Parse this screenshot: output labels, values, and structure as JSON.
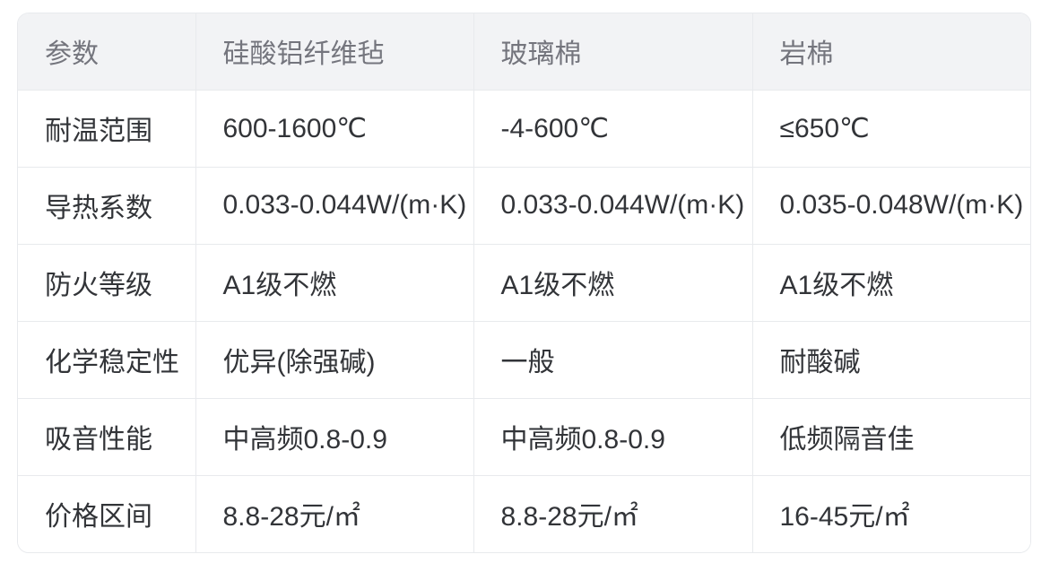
{
  "table": {
    "headers": [
      "参数",
      "硅酸铝纤维毡",
      "玻璃棉",
      "岩棉"
    ],
    "rows": [
      {
        "label": "耐温范围",
        "values": [
          "600-1600℃",
          "-4-600℃",
          "≤650℃"
        ]
      },
      {
        "label": "导热系数",
        "values": [
          "0.033-0.044W/(m·K)",
          "0.033-0.044W/(m·K)",
          "0.035-0.048W/(m·K)"
        ]
      },
      {
        "label": "防火等级",
        "values": [
          "A1级不燃",
          "A1级不燃",
          "A1级不燃"
        ]
      },
      {
        "label": "化学稳定性",
        "values": [
          "优异(除强碱)",
          "一般",
          "耐酸碱"
        ]
      },
      {
        "label": "吸音性能",
        "values": [
          "中高频0.8-0.9",
          "中高频0.8-0.9",
          "低频隔音佳"
        ]
      },
      {
        "label": "价格区间",
        "values": [
          "8.8-28元/㎡",
          "8.8-28元/㎡",
          "16-45元/㎡"
        ]
      }
    ]
  },
  "colors": {
    "page_background": "#ffffff",
    "header_background": "#f2f3f5",
    "header_text": "#74757d",
    "body_text": "#323438",
    "border": "#e8eaed"
  }
}
